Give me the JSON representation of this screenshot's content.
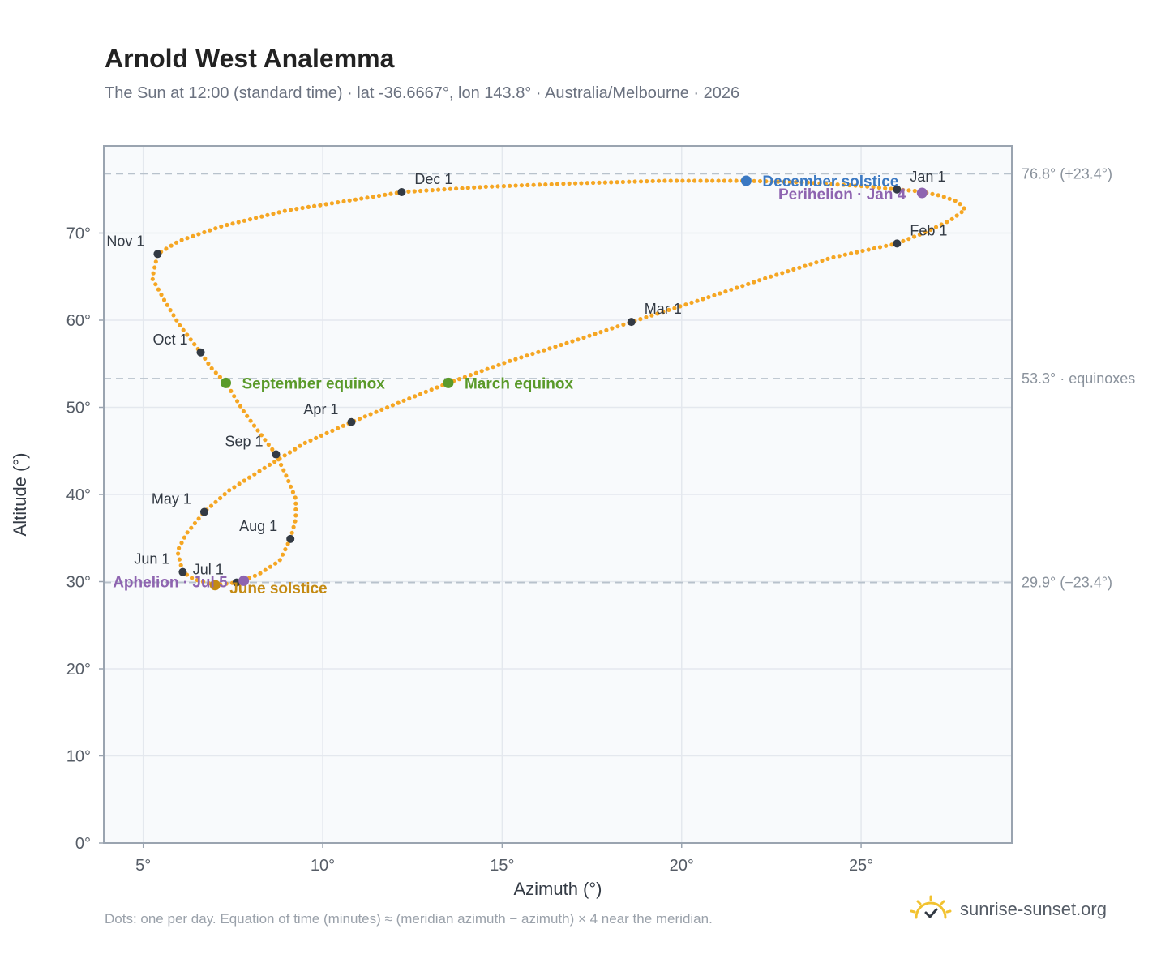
{
  "header": {
    "title": "Arnold West Analemma",
    "subtitle": "The Sun at 12:00 (standard time) · lat -36.6667°, lon 143.8° · Australia/Melbourne · 2026"
  },
  "footer": {
    "note": "Dots: one per day. Equation of time (minutes) ≈ (meridian azimuth − azimuth) × 4 near the meridian.",
    "brand": "sunrise-sunset.org"
  },
  "chart_data": {
    "type": "scatter",
    "xlabel": "Azimuth (°)",
    "ylabel": "Altitude (°)",
    "xlim": [
      3.9,
      29.2
    ],
    "ylim": [
      0,
      80
    ],
    "xticks": [
      5,
      10,
      15,
      20,
      25
    ],
    "xtick_labels": [
      "5°",
      "10°",
      "15°",
      "20°",
      "25°"
    ],
    "yticks": [
      0,
      10,
      20,
      30,
      40,
      50,
      60,
      70
    ],
    "ytick_labels": [
      "0°",
      "10°",
      "20°",
      "30°",
      "40°",
      "50°",
      "60°",
      "70°"
    ],
    "grid": true,
    "colors": {
      "path": "#f5a623",
      "month_marker": "#333a44",
      "solstice_dec": "#3a78c2",
      "solstice_jun": "#c48a12",
      "equinox": "#5a9a2a",
      "apsis": "#8e64b0",
      "ref_line": "#b8c2cc",
      "plot_bg": "#f8fafc",
      "frame": "#9aa4b0"
    },
    "reference_lines": [
      {
        "y": 76.8,
        "label": "76.8° (+23.4°)"
      },
      {
        "y": 53.3,
        "label": "53.3° · equinoxes"
      },
      {
        "y": 29.9,
        "label": "29.9° (−23.4°)"
      }
    ],
    "month_markers": [
      {
        "label": "Jan 1",
        "x": 26.0,
        "y": 75.0
      },
      {
        "label": "Feb 1",
        "x": 26.0,
        "y": 68.8
      },
      {
        "label": "Mar 1",
        "x": 18.6,
        "y": 59.8
      },
      {
        "label": "Apr 1",
        "x": 10.8,
        "y": 48.3
      },
      {
        "label": "May 1",
        "x": 6.7,
        "y": 38.0
      },
      {
        "label": "Jun 1",
        "x": 6.1,
        "y": 31.1
      },
      {
        "label": "Jul 1",
        "x": 7.6,
        "y": 29.9
      },
      {
        "label": "Aug 1",
        "x": 9.1,
        "y": 34.9
      },
      {
        "label": "Sep 1",
        "x": 8.7,
        "y": 44.6
      },
      {
        "label": "Oct 1",
        "x": 6.6,
        "y": 56.3
      },
      {
        "label": "Nov 1",
        "x": 5.4,
        "y": 67.6
      },
      {
        "label": "Dec 1",
        "x": 12.2,
        "y": 74.7
      }
    ],
    "events": [
      {
        "label": "December solstice",
        "x": 21.8,
        "y": 76.0,
        "kind": "solstice_dec"
      },
      {
        "label": "Perihelion · Jan 4",
        "x": 26.7,
        "y": 74.6,
        "kind": "apsis"
      },
      {
        "label": "September equinox",
        "x": 7.3,
        "y": 52.8,
        "kind": "equinox"
      },
      {
        "label": "March equinox",
        "x": 13.5,
        "y": 52.8,
        "kind": "equinox"
      },
      {
        "label": "June solstice",
        "x": 7.0,
        "y": 29.6,
        "kind": "solstice_jun"
      },
      {
        "label": "Aphelion · Jul 5",
        "x": 7.8,
        "y": 30.1,
        "kind": "apsis"
      }
    ],
    "path": [
      [
        26.0,
        75.0
      ],
      [
        26.6,
        74.8
      ],
      [
        27.2,
        74.3
      ],
      [
        27.7,
        73.6
      ],
      [
        27.9,
        72.7
      ],
      [
        27.5,
        71.5
      ],
      [
        26.8,
        70.1
      ],
      [
        26.0,
        68.8
      ],
      [
        24.2,
        67.2
      ],
      [
        22.4,
        64.9
      ],
      [
        20.5,
        62.3
      ],
      [
        18.6,
        59.8
      ],
      [
        16.9,
        57.5
      ],
      [
        15.2,
        55.3
      ],
      [
        13.5,
        52.8
      ],
      [
        12.1,
        50.5
      ],
      [
        10.8,
        48.3
      ],
      [
        9.5,
        45.9
      ],
      [
        8.4,
        43.1
      ],
      [
        7.4,
        40.5
      ],
      [
        6.7,
        38.0
      ],
      [
        6.2,
        35.5
      ],
      [
        5.95,
        33.5
      ],
      [
        6.1,
        31.1
      ],
      [
        6.4,
        30.3
      ],
      [
        7.0,
        29.6
      ],
      [
        7.6,
        29.9
      ],
      [
        8.2,
        30.8
      ],
      [
        8.8,
        32.4
      ],
      [
        9.1,
        34.9
      ],
      [
        9.25,
        37.2
      ],
      [
        9.25,
        39.5
      ],
      [
        9.0,
        42.0
      ],
      [
        8.7,
        44.6
      ],
      [
        8.2,
        47.3
      ],
      [
        7.8,
        49.5
      ],
      [
        7.3,
        52.8
      ],
      [
        6.9,
        54.5
      ],
      [
        6.6,
        56.3
      ],
      [
        6.0,
        59.5
      ],
      [
        5.6,
        62.2
      ],
      [
        5.25,
        64.8
      ],
      [
        5.4,
        67.6
      ],
      [
        6.0,
        69.1
      ],
      [
        7.2,
        70.8
      ],
      [
        9.0,
        72.6
      ],
      [
        11.0,
        73.9
      ],
      [
        12.2,
        74.7
      ],
      [
        14.5,
        75.3
      ],
      [
        17.0,
        75.7
      ],
      [
        19.5,
        76.0
      ],
      [
        21.8,
        76.0
      ],
      [
        23.5,
        75.8
      ],
      [
        25.0,
        75.4
      ],
      [
        26.0,
        75.0
      ]
    ]
  }
}
